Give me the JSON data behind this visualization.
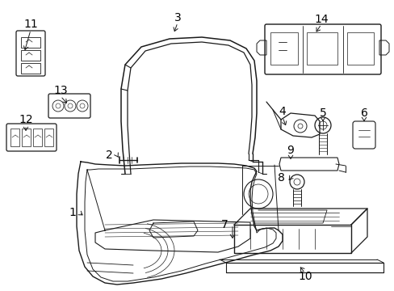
{
  "bg_color": "#ffffff",
  "line_color": "#1a1a1a",
  "text_color": "#000000",
  "font_size": 9,
  "dpi": 100,
  "figw": 4.89,
  "figh": 3.6
}
